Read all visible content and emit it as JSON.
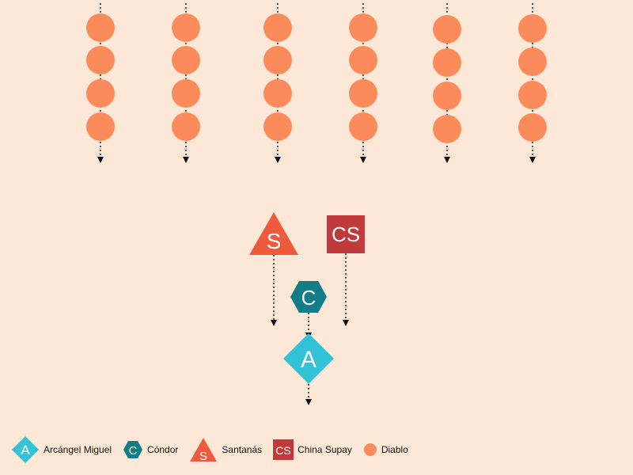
{
  "colors": {
    "background": "#fde8d7",
    "arcangel": "#34c3d6",
    "condor": "#127d87",
    "santanas": "#ef5a3d",
    "china_supay": "#c0393b",
    "diablo": "#fc8b5c",
    "arrow": "#111111",
    "symbol_text": "#ffffff"
  },
  "formation": {
    "columns": 6,
    "rows_per_column": 4,
    "column_role": "diablo",
    "guide_role": "arrow-down"
  },
  "leaders": [
    {
      "role": "santanas",
      "shape": "triangle",
      "symbol": "S"
    },
    {
      "role": "china_supay",
      "shape": "square",
      "symbol": "CS"
    },
    {
      "role": "condor",
      "shape": "hexagon",
      "symbol": "C"
    },
    {
      "role": "arcangel",
      "shape": "diamond",
      "symbol": "A"
    }
  ],
  "legend": {
    "items": [
      {
        "key": "arcangel",
        "shape": "diamond",
        "symbol": "A",
        "label": "Arcángel Miguel"
      },
      {
        "key": "condor",
        "shape": "hexagon",
        "symbol": "C",
        "label": "Cóndor"
      },
      {
        "key": "santanas",
        "shape": "triangle",
        "symbol": "S",
        "label": "Santanás"
      },
      {
        "key": "china_supay",
        "shape": "square",
        "symbol": "CS",
        "label": "China Supay"
      },
      {
        "key": "diablo",
        "shape": "circle",
        "symbol": "",
        "label": "Diablo"
      }
    ]
  }
}
